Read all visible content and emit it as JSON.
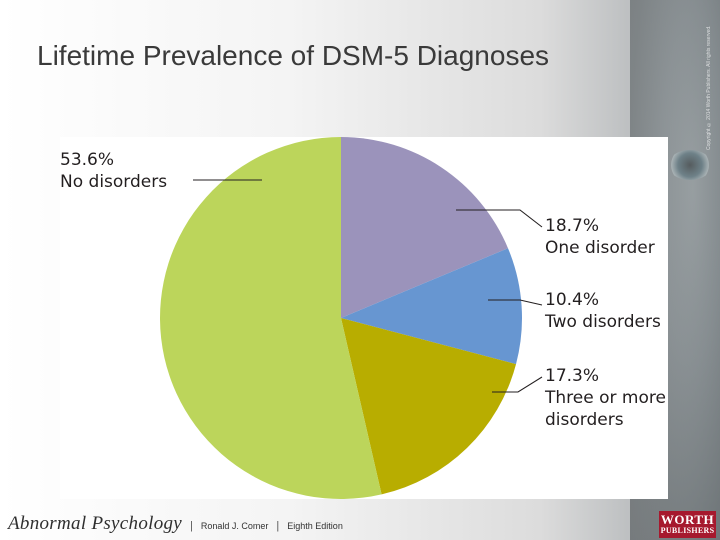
{
  "slide": {
    "title": "Lifetime Prevalence of DSM-5 Diagnoses",
    "copyright": "Copyright © 2014 Worth Publishers. All rights reserved."
  },
  "footer": {
    "book_title": "Abnormal Psychology",
    "author": "Ronald J. Comer",
    "edition": "Eighth Edition",
    "separator": "|",
    "publisher_line1": "WORTH",
    "publisher_line2": "PUBLISHERS"
  },
  "chart_data": {
    "type": "pie",
    "title": "",
    "slices": [
      {
        "percent_label": "18.7%",
        "label_lines": [
          "One disorder"
        ],
        "value": 18.7,
        "color": "#9b93bb"
      },
      {
        "percent_label": "10.4%",
        "label_lines": [
          "Two disorders"
        ],
        "value": 10.4,
        "color": "#6796d1"
      },
      {
        "percent_label": "17.3%",
        "label_lines": [
          "Three or more",
          "disorders"
        ],
        "value": 17.3,
        "color": "#b8ad00"
      },
      {
        "percent_label": "53.6%",
        "label_lines": [
          "No disorders"
        ],
        "value": 53.6,
        "color": "#bcd55b"
      }
    ]
  },
  "colors": {
    "title_text": "#3a3a3a",
    "publisher_red": "#a6192e",
    "leader_line": "#231f20"
  }
}
